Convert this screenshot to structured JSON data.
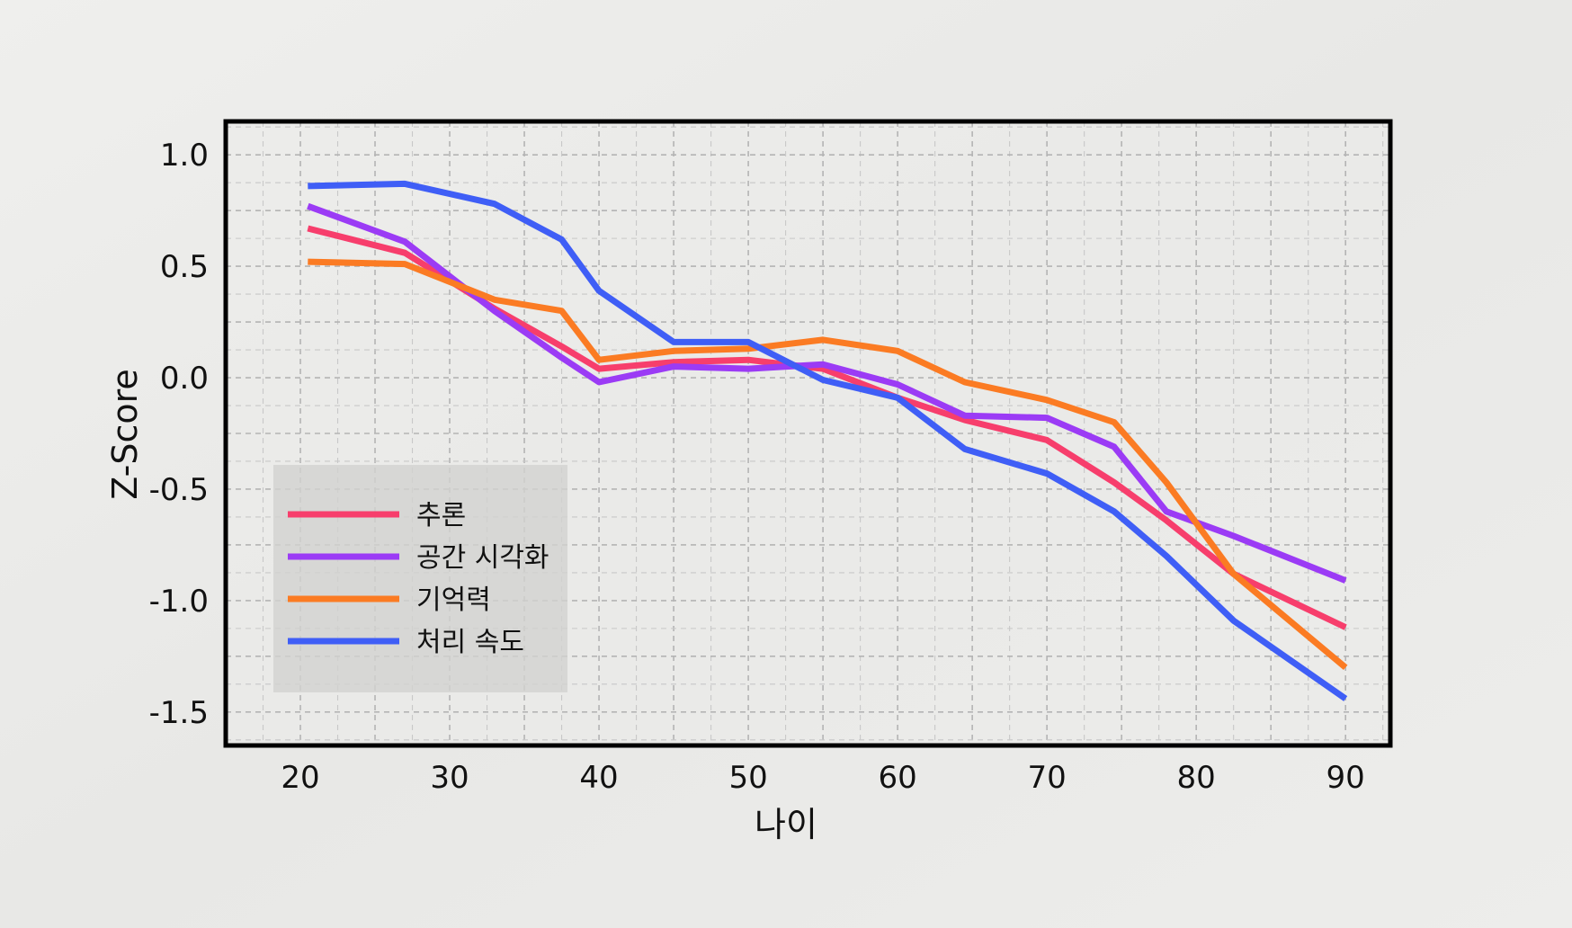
{
  "chart_data": {
    "type": "line",
    "title": "",
    "xlabel": "나이",
    "ylabel": "Z-Score",
    "xlim": [
      15,
      93
    ],
    "ylim": [
      -1.65,
      1.15
    ],
    "xticks": [
      20,
      30,
      40,
      50,
      60,
      70,
      80,
      90
    ],
    "yticks": [
      1.0,
      0.5,
      0.0,
      -0.5,
      -1.0,
      -1.5
    ],
    "xtick_labels": [
      "20",
      "30",
      "40",
      "50",
      "60",
      "70",
      "80",
      "90"
    ],
    "ytick_labels": [
      "1.0",
      "0.5",
      "0.0",
      "-0.5",
      "-1.0",
      "-1.5"
    ],
    "grid": true,
    "legend_position": "lower-left",
    "x": [
      20.5,
      27,
      33,
      37.5,
      40,
      45,
      50,
      55,
      60,
      64.5,
      70,
      74.5,
      78,
      82.5,
      90
    ],
    "series": [
      {
        "name": "추론",
        "color": "#f73e6c",
        "values": [
          0.67,
          0.56,
          0.31,
          0.14,
          0.04,
          0.07,
          0.08,
          0.04,
          -0.09,
          -0.19,
          -0.28,
          -0.47,
          -0.64,
          -0.88,
          -1.12
        ]
      },
      {
        "name": "공간 시각화",
        "color": "#9b3bf5",
        "values": [
          0.77,
          0.61,
          0.3,
          0.09,
          -0.02,
          0.05,
          0.04,
          0.06,
          -0.03,
          -0.17,
          -0.18,
          -0.31,
          -0.6,
          -0.71,
          -0.91
        ]
      },
      {
        "name": "기억력",
        "color": "#fb7b23",
        "values": [
          0.52,
          0.51,
          0.35,
          0.3,
          0.08,
          0.12,
          0.13,
          0.17,
          0.12,
          -0.02,
          -0.1,
          -0.2,
          -0.47,
          -0.88,
          -1.3
        ]
      },
      {
        "name": "처리 속도",
        "color": "#3f5ef6",
        "values": [
          0.86,
          0.87,
          0.78,
          0.62,
          0.39,
          0.16,
          0.16,
          -0.01,
          -0.09,
          -0.32,
          -0.43,
          -0.6,
          -0.8,
          -1.09,
          -1.44
        ]
      }
    ]
  }
}
